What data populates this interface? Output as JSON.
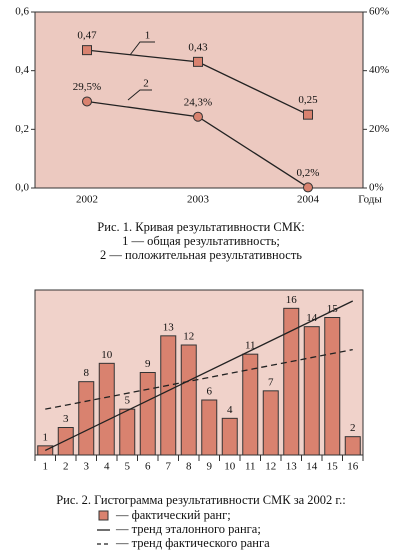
{
  "chart_data": [
    {
      "type": "line",
      "categories": [
        "2002",
        "2003",
        "2004"
      ],
      "xlabel": "Годы",
      "ylim": [
        0,
        0.6
      ],
      "yticks": [
        {
          "value": 0,
          "label": "0,0"
        },
        {
          "value": 0.2,
          "label": "0,2"
        },
        {
          "value": 0.4,
          "label": "0,4"
        },
        {
          "value": 0.6,
          "label": "0,6"
        }
      ],
      "y2lim": [
        0,
        60
      ],
      "y2ticks": [
        {
          "value": 0,
          "label": "0%"
        },
        {
          "value": 20,
          "label": "20%"
        },
        {
          "value": 40,
          "label": "40%"
        },
        {
          "value": 60,
          "label": "60%"
        }
      ],
      "series": [
        {
          "name": "1",
          "marker": "square",
          "color": "#d9826f",
          "values": [
            0.47,
            0.43,
            0.25
          ],
          "value_labels": [
            "0,47",
            "0,43",
            "0,25"
          ]
        },
        {
          "name": "2",
          "marker": "circle",
          "color": "#d9826f",
          "axis": "y2",
          "values": [
            29.5,
            24.3,
            0.2
          ],
          "value_labels": [
            "29,5%",
            "24,3%",
            "0,2%"
          ]
        }
      ],
      "caption": [
        "Рис. 1. Кривая результативности СМК:",
        "1 — общая результативность;",
        "2 — положительная результативность"
      ]
    },
    {
      "type": "bar",
      "categories": [
        "1",
        "2",
        "3",
        "4",
        "5",
        "6",
        "7",
        "8",
        "9",
        "10",
        "11",
        "12",
        "13",
        "14",
        "15",
        "16"
      ],
      "name": "— фактический ранг;",
      "color": "#d9826f",
      "values": [
        1,
        3,
        8,
        10,
        5,
        9,
        13,
        12,
        6,
        4,
        11,
        7,
        16,
        14,
        15,
        2
      ],
      "ylim": [
        0,
        18
      ],
      "trends": [
        {
          "name": "— тренд эталонного ранга;",
          "style": "solid",
          "values": [
            0.5,
            16.8
          ]
        },
        {
          "name": "— тренд фактического ранга",
          "style": "dashed",
          "values": [
            5,
            11.5
          ]
        }
      ],
      "caption": [
        "Рис. 2. Гистограмма результативности СМК за 2002 г.:"
      ]
    }
  ]
}
